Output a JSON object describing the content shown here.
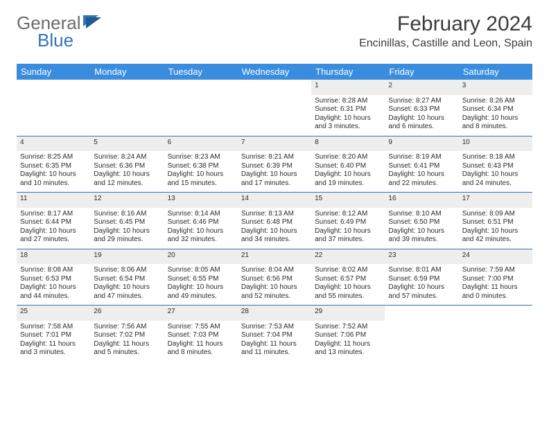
{
  "logo": {
    "general": "General",
    "blue": "Blue"
  },
  "header": {
    "month": "February 2024",
    "location": "Encinillas, Castille and Leon, Spain"
  },
  "colors": {
    "dayHeaderBg": "#3a8dde",
    "dayHeaderText": "#ffffff",
    "rowBorder": "#2f74b5",
    "dayNumBg": "#eeeeee",
    "logoGray": "#6b6b6b",
    "logoBlue": "#2f74b5"
  },
  "dayNames": [
    "Sunday",
    "Monday",
    "Tuesday",
    "Wednesday",
    "Thursday",
    "Friday",
    "Saturday"
  ],
  "weeks": [
    [
      null,
      null,
      null,
      null,
      {
        "n": "1",
        "sr": "8:28 AM",
        "ss": "6:31 PM",
        "d1": "10 hours",
        "d2": "and 3 minutes."
      },
      {
        "n": "2",
        "sr": "8:27 AM",
        "ss": "6:33 PM",
        "d1": "10 hours",
        "d2": "and 6 minutes."
      },
      {
        "n": "3",
        "sr": "8:26 AM",
        "ss": "6:34 PM",
        "d1": "10 hours",
        "d2": "and 8 minutes."
      }
    ],
    [
      {
        "n": "4",
        "sr": "8:25 AM",
        "ss": "6:35 PM",
        "d1": "10 hours",
        "d2": "and 10 minutes."
      },
      {
        "n": "5",
        "sr": "8:24 AM",
        "ss": "6:36 PM",
        "d1": "10 hours",
        "d2": "and 12 minutes."
      },
      {
        "n": "6",
        "sr": "8:23 AM",
        "ss": "6:38 PM",
        "d1": "10 hours",
        "d2": "and 15 minutes."
      },
      {
        "n": "7",
        "sr": "8:21 AM",
        "ss": "6:39 PM",
        "d1": "10 hours",
        "d2": "and 17 minutes."
      },
      {
        "n": "8",
        "sr": "8:20 AM",
        "ss": "6:40 PM",
        "d1": "10 hours",
        "d2": "and 19 minutes."
      },
      {
        "n": "9",
        "sr": "8:19 AM",
        "ss": "6:41 PM",
        "d1": "10 hours",
        "d2": "and 22 minutes."
      },
      {
        "n": "10",
        "sr": "8:18 AM",
        "ss": "6:43 PM",
        "d1": "10 hours",
        "d2": "and 24 minutes."
      }
    ],
    [
      {
        "n": "11",
        "sr": "8:17 AM",
        "ss": "6:44 PM",
        "d1": "10 hours",
        "d2": "and 27 minutes."
      },
      {
        "n": "12",
        "sr": "8:16 AM",
        "ss": "6:45 PM",
        "d1": "10 hours",
        "d2": "and 29 minutes."
      },
      {
        "n": "13",
        "sr": "8:14 AM",
        "ss": "6:46 PM",
        "d1": "10 hours",
        "d2": "and 32 minutes."
      },
      {
        "n": "14",
        "sr": "8:13 AM",
        "ss": "6:48 PM",
        "d1": "10 hours",
        "d2": "and 34 minutes."
      },
      {
        "n": "15",
        "sr": "8:12 AM",
        "ss": "6:49 PM",
        "d1": "10 hours",
        "d2": "and 37 minutes."
      },
      {
        "n": "16",
        "sr": "8:10 AM",
        "ss": "6:50 PM",
        "d1": "10 hours",
        "d2": "and 39 minutes."
      },
      {
        "n": "17",
        "sr": "8:09 AM",
        "ss": "6:51 PM",
        "d1": "10 hours",
        "d2": "and 42 minutes."
      }
    ],
    [
      {
        "n": "18",
        "sr": "8:08 AM",
        "ss": "6:53 PM",
        "d1": "10 hours",
        "d2": "and 44 minutes."
      },
      {
        "n": "19",
        "sr": "8:06 AM",
        "ss": "6:54 PM",
        "d1": "10 hours",
        "d2": "and 47 minutes."
      },
      {
        "n": "20",
        "sr": "8:05 AM",
        "ss": "6:55 PM",
        "d1": "10 hours",
        "d2": "and 49 minutes."
      },
      {
        "n": "21",
        "sr": "8:04 AM",
        "ss": "6:56 PM",
        "d1": "10 hours",
        "d2": "and 52 minutes."
      },
      {
        "n": "22",
        "sr": "8:02 AM",
        "ss": "6:57 PM",
        "d1": "10 hours",
        "d2": "and 55 minutes."
      },
      {
        "n": "23",
        "sr": "8:01 AM",
        "ss": "6:59 PM",
        "d1": "10 hours",
        "d2": "and 57 minutes."
      },
      {
        "n": "24",
        "sr": "7:59 AM",
        "ss": "7:00 PM",
        "d1": "11 hours",
        "d2": "and 0 minutes."
      }
    ],
    [
      {
        "n": "25",
        "sr": "7:58 AM",
        "ss": "7:01 PM",
        "d1": "11 hours",
        "d2": "and 3 minutes."
      },
      {
        "n": "26",
        "sr": "7:56 AM",
        "ss": "7:02 PM",
        "d1": "11 hours",
        "d2": "and 5 minutes."
      },
      {
        "n": "27",
        "sr": "7:55 AM",
        "ss": "7:03 PM",
        "d1": "11 hours",
        "d2": "and 8 minutes."
      },
      {
        "n": "28",
        "sr": "7:53 AM",
        "ss": "7:04 PM",
        "d1": "11 hours",
        "d2": "and 11 minutes."
      },
      {
        "n": "29",
        "sr": "7:52 AM",
        "ss": "7:06 PM",
        "d1": "11 hours",
        "d2": "and 13 minutes."
      },
      null,
      null
    ]
  ],
  "labels": {
    "sunrise": "Sunrise:",
    "sunset": "Sunset:",
    "daylight": "Daylight:"
  }
}
